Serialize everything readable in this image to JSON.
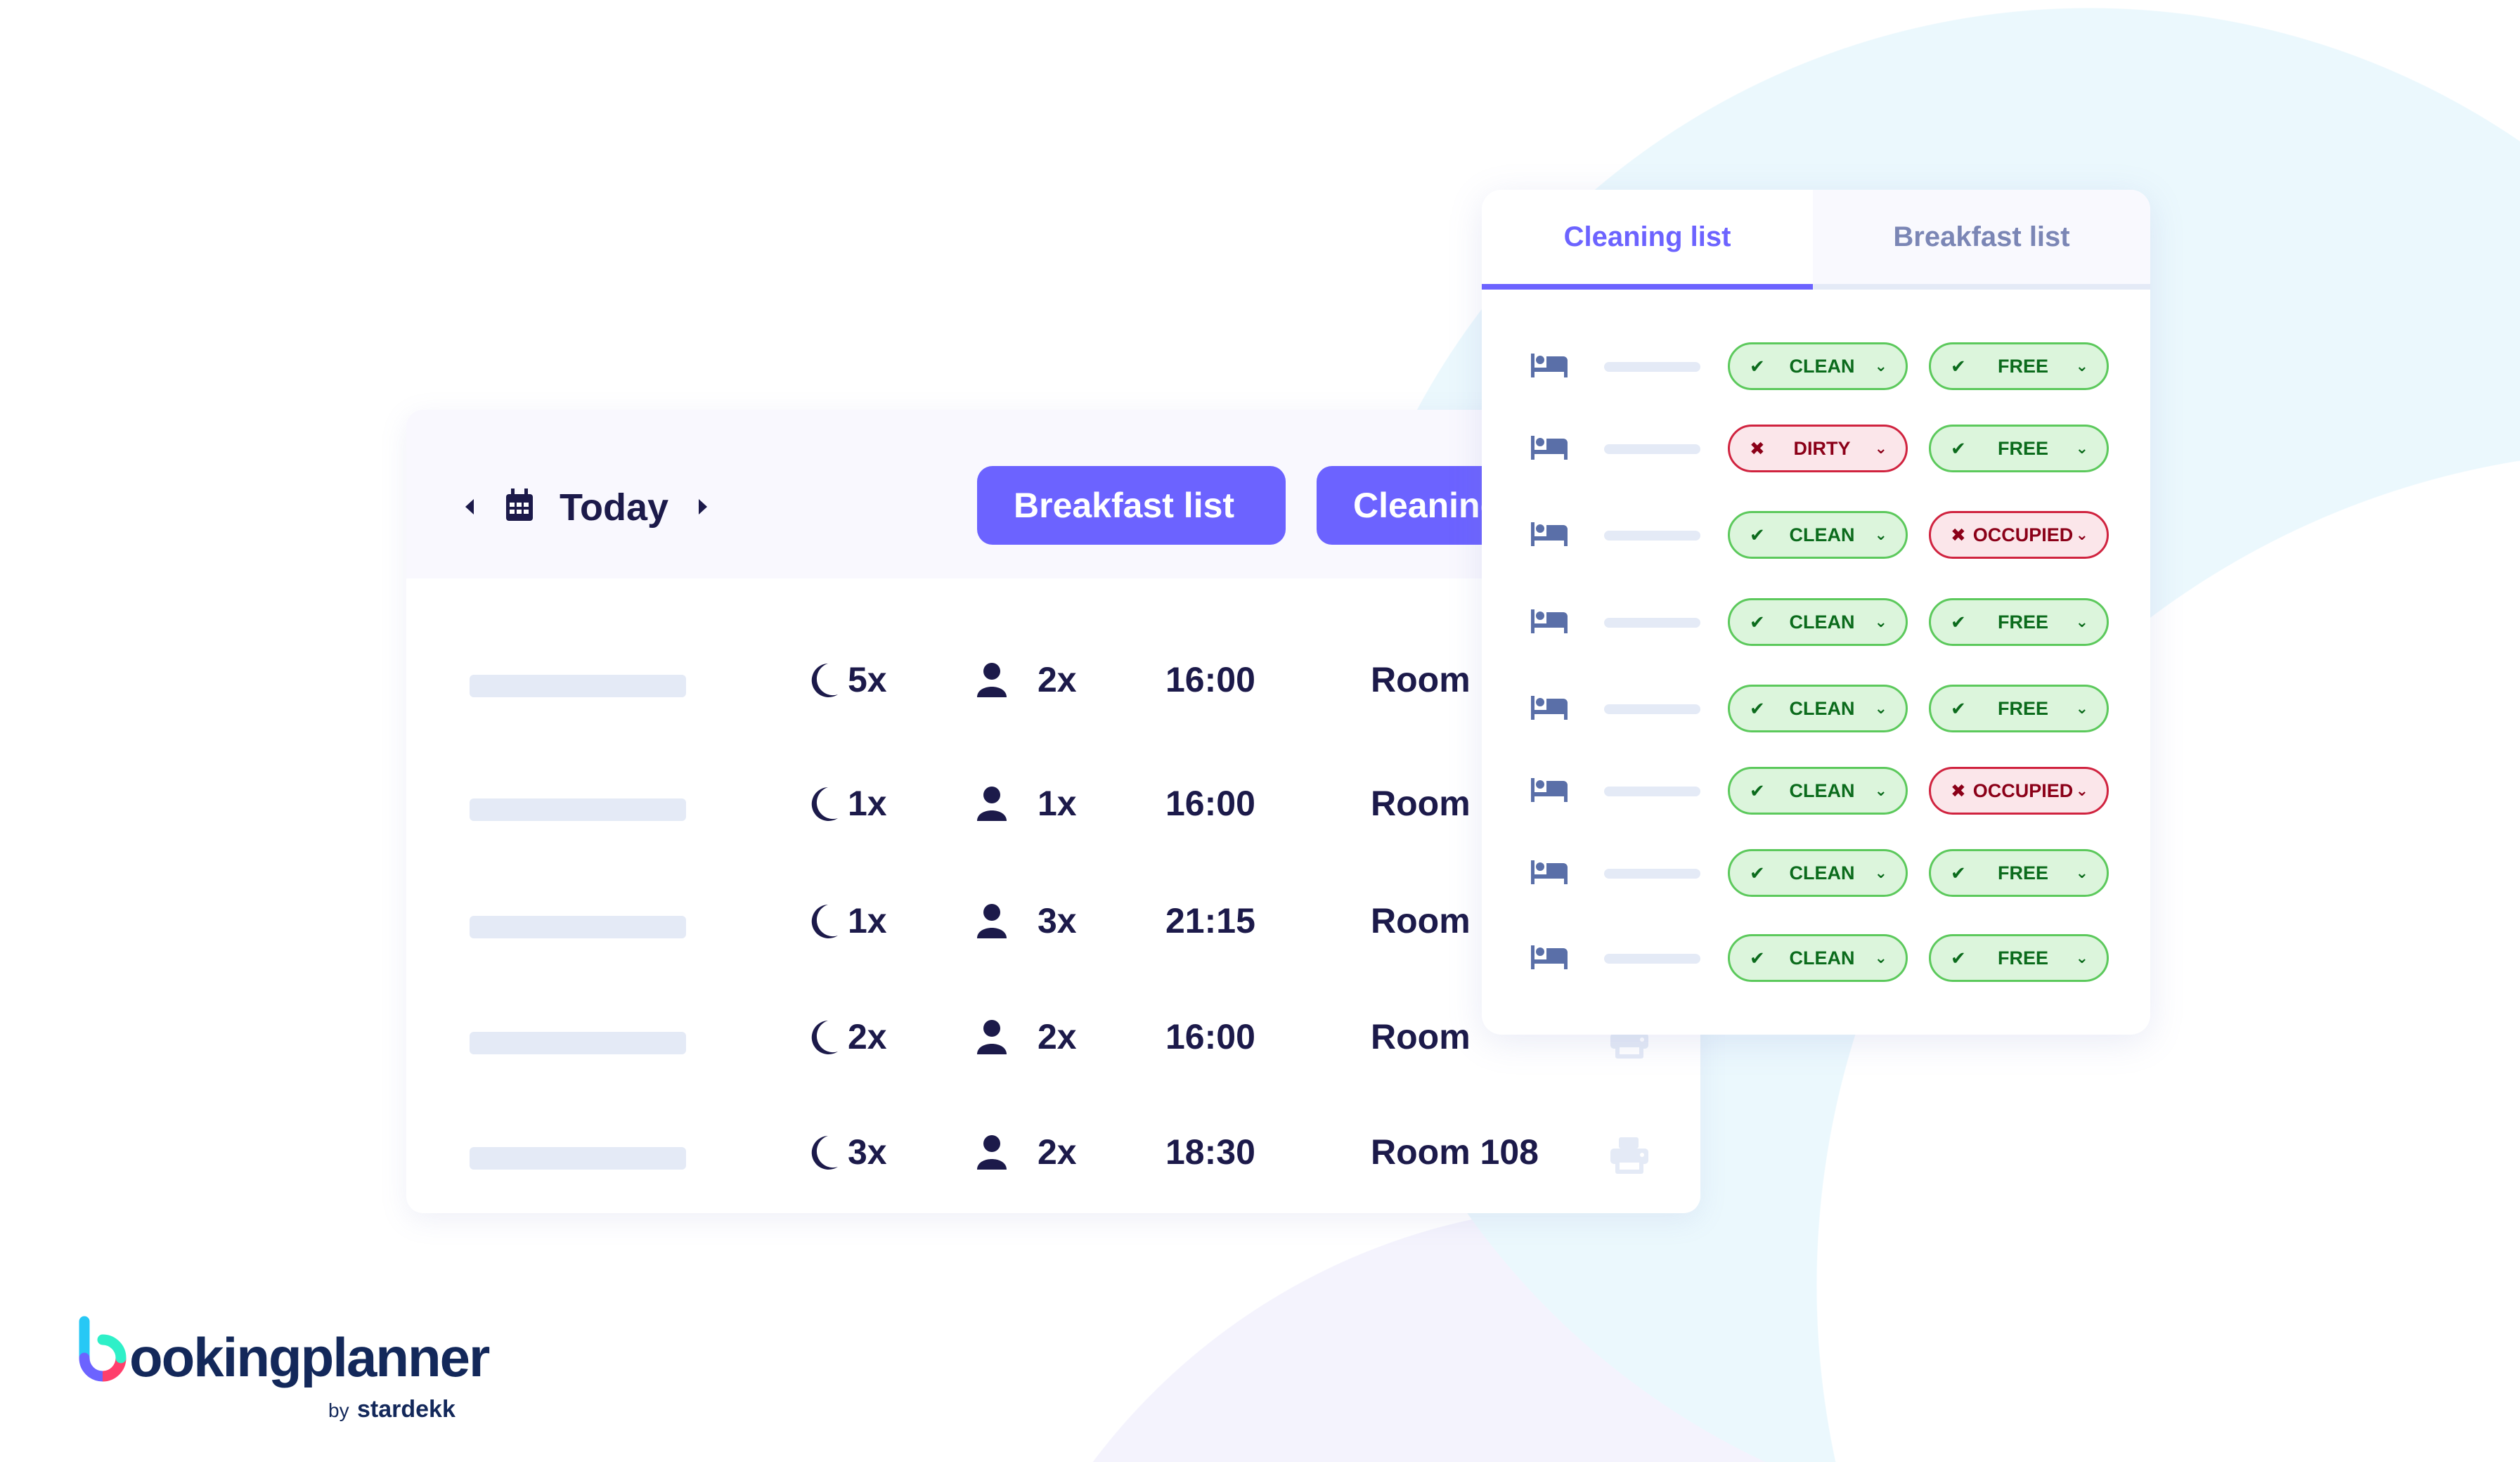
{
  "colors": {
    "accent": "#6c63ff",
    "text": "#1c1a4a",
    "ok_bg": "#dcf5dc",
    "ok_text": "#0b6b1c",
    "bad_bg": "#fbe6ea",
    "bad_text": "#8b0018"
  },
  "bookings": {
    "date_label": "Today",
    "buttons": {
      "breakfast": "Breakfast list",
      "cleaning": "Cleaning list"
    },
    "rows": [
      {
        "nights": "5x",
        "guests": "2x",
        "time": "16:00",
        "room": "Room"
      },
      {
        "nights": "1x",
        "guests": "1x",
        "time": "16:00",
        "room": "Room"
      },
      {
        "nights": "1x",
        "guests": "3x",
        "time": "21:15",
        "room": "Room"
      },
      {
        "nights": "2x",
        "guests": "2x",
        "time": "16:00",
        "room": "Room"
      },
      {
        "nights": "3x",
        "guests": "2x",
        "time": "18:30",
        "room": "Room 108"
      }
    ]
  },
  "panel": {
    "tabs": [
      {
        "label": "Cleaning list",
        "active": true
      },
      {
        "label": "Breakfast list",
        "active": false
      }
    ],
    "rows": [
      {
        "cleaning": "CLEAN",
        "occupancy": "FREE"
      },
      {
        "cleaning": "DIRTY",
        "occupancy": "FREE"
      },
      {
        "cleaning": "CLEAN",
        "occupancy": "OCCUPIED"
      },
      {
        "cleaning": "CLEAN",
        "occupancy": "FREE"
      },
      {
        "cleaning": "CLEAN",
        "occupancy": "FREE"
      },
      {
        "cleaning": "CLEAN",
        "occupancy": "OCCUPIED"
      },
      {
        "cleaning": "CLEAN",
        "occupancy": "FREE"
      },
      {
        "cleaning": "CLEAN",
        "occupancy": "FREE"
      }
    ]
  },
  "logo": {
    "name": "bookingplanner",
    "byline": "by stardekk"
  }
}
